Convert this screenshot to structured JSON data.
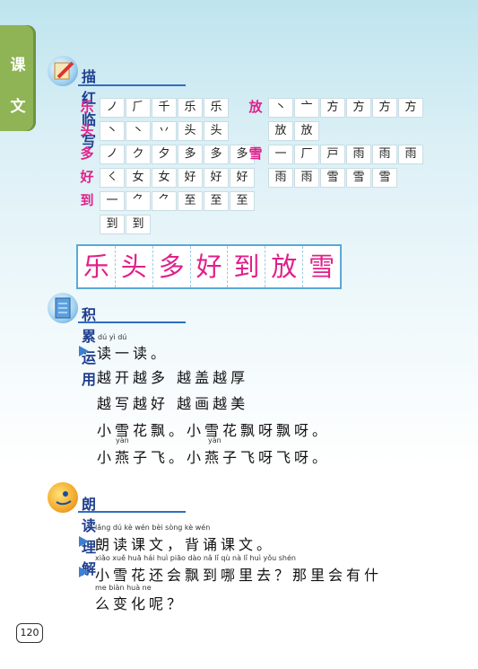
{
  "side_tab": {
    "char1": "课",
    "char2": "文"
  },
  "section1": {
    "title": "描红临写"
  },
  "grid_left": [
    {
      "lead": "乐",
      "cells": [
        "ノ",
        "⺁",
        "千",
        "乐",
        "乐"
      ]
    },
    {
      "lead": "头",
      "cells": [
        "丶",
        "丶",
        "丷",
        "头",
        "头"
      ]
    },
    {
      "lead": "多",
      "cells": [
        "ノ",
        "ク",
        "夕",
        "多",
        "多",
        "多"
      ]
    },
    {
      "lead": "好",
      "cells": [
        "㇛",
        "女",
        "女",
        "好",
        "好",
        "好"
      ]
    },
    {
      "lead": "到",
      "cells": [
        "一",
        "⺈",
        "⺈",
        "至",
        "至",
        "至"
      ]
    },
    {
      "lead": "",
      "cells": [
        "到",
        "到"
      ]
    }
  ],
  "grid_right": [
    {
      "lead": "放",
      "cells": [
        "丶",
        "亠",
        "方",
        "方",
        "方",
        "方"
      ]
    },
    {
      "lead": "",
      "cells": [
        "放",
        "放"
      ]
    },
    {
      "lead": "雪",
      "cells": [
        "一",
        "厂",
        "戸",
        "雨",
        "雨",
        "雨"
      ]
    },
    {
      "lead": "",
      "cells": [
        "雨",
        "雨",
        "雪",
        "雪",
        "雪"
      ]
    }
  ],
  "banner": [
    "乐",
    "头",
    "多",
    "好",
    "到",
    "放",
    "雪"
  ],
  "section2": {
    "title": "积累运用",
    "pinyin1": "dú  yì  dú",
    "line1": "读一读。",
    "line2": "越开越多  越盖越厚",
    "line3": "越写越好  越画越美",
    "line4": "小雪花飘。小雪花飘呀飘呀。",
    "pinyin5a": "yàn",
    "pinyin5b": "yàn",
    "line5": "小燕子飞。小燕子飞呀飞呀。"
  },
  "section3": {
    "title": "朗读理解",
    "pinyin1": "lǎng dú  kè  wén         bèi sòng kè  wén",
    "line1": "朗读课文，背诵课文。",
    "pinyin2": "xiǎo xuě huā hái huì piāo dào nǎ   lǐ   qù       nà   lǐ   huì yǒu shén",
    "line2": "小雪花还会飘到哪里去？那里会有什",
    "pinyin3": "me biàn huà  ne",
    "line3": "么变化呢？"
  },
  "page_number": "120",
  "colors": {
    "accent_pink": "#e0208a",
    "heading_blue": "#1f3f8f",
    "tab_green": "#8fb456"
  }
}
